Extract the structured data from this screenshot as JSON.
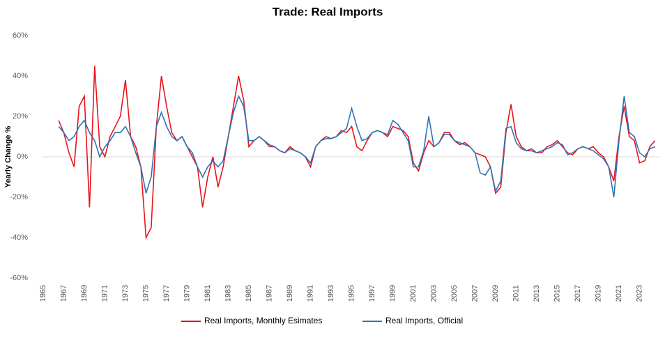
{
  "chart_data": {
    "type": "line",
    "title": "Trade: Real Imports",
    "ylabel": "Yearly Change %",
    "x": [
      1966.5,
      1967,
      1967.5,
      1968,
      1968.5,
      1969,
      1969.5,
      1970,
      1970.5,
      1971,
      1971.5,
      1972,
      1972.5,
      1973,
      1973.5,
      1974,
      1974.5,
      1975,
      1975.5,
      1976,
      1976.5,
      1977,
      1977.5,
      1978,
      1978.5,
      1979,
      1979.5,
      1980,
      1980.5,
      1981,
      1981.5,
      1982,
      1982.5,
      1983,
      1983.5,
      1984,
      1984.5,
      1985,
      1985.5,
      1986,
      1986.5,
      1987,
      1987.5,
      1988,
      1988.5,
      1989,
      1989.5,
      1990,
      1990.5,
      1991,
      1991.5,
      1992,
      1992.5,
      1993,
      1993.5,
      1994,
      1994.5,
      1995,
      1995.5,
      1996,
      1996.5,
      1997,
      1997.5,
      1998,
      1998.5,
      1999,
      1999.5,
      2000,
      2000.5,
      2001,
      2001.5,
      2002,
      2002.5,
      2003,
      2003.5,
      2004,
      2004.5,
      2005,
      2005.5,
      2006,
      2006.5,
      2007,
      2007.5,
      2008,
      2008.5,
      2009,
      2009.5,
      2010,
      2010.5,
      2011,
      2011.5,
      2012,
      2012.5,
      2013,
      2013.5,
      2014,
      2014.5,
      2015,
      2015.5,
      2016,
      2016.5,
      2017,
      2017.5,
      2018,
      2018.5,
      2019,
      2019.5,
      2020,
      2020.5,
      2021,
      2021.5,
      2022,
      2022.5,
      2023,
      2023.5,
      2024,
      2024.5
    ],
    "series": [
      {
        "name": "Real Imports, Monthly Esimates",
        "color": "#e8141b",
        "values": [
          18,
          12,
          2,
          -5,
          25,
          30,
          -25,
          45,
          5,
          0,
          10,
          15,
          20,
          38,
          10,
          5,
          -5,
          -40,
          -35,
          15,
          40,
          25,
          12,
          8,
          10,
          5,
          0,
          -5,
          -25,
          -10,
          0,
          -15,
          -5,
          10,
          25,
          40,
          28,
          5,
          8,
          10,
          8,
          5,
          5,
          3,
          2,
          5,
          3,
          2,
          0,
          -5,
          5,
          8,
          10,
          9,
          10,
          13,
          12,
          15,
          5,
          3,
          8,
          12,
          13,
          12,
          10,
          15,
          14,
          13,
          10,
          -3,
          -7,
          2,
          8,
          5,
          7,
          12,
          12,
          8,
          6,
          7,
          5,
          2,
          1,
          0,
          -5,
          -18,
          -15,
          12,
          26,
          10,
          5,
          3,
          3,
          2,
          2,
          5,
          6,
          8,
          5,
          2,
          1,
          4,
          5,
          4,
          5,
          2,
          0,
          -5,
          -12,
          10,
          25,
          10,
          8,
          -3,
          -2,
          5,
          8
        ]
      },
      {
        "name": "Real Imports, Official",
        "color": "#2e75b6",
        "values": [
          15,
          12,
          8,
          10,
          15,
          18,
          12,
          8,
          0,
          5,
          8,
          12,
          12,
          15,
          10,
          2,
          -5,
          -18,
          -10,
          15,
          22,
          15,
          10,
          8,
          10,
          5,
          2,
          -5,
          -10,
          -5,
          -2,
          -5,
          -2,
          10,
          22,
          30,
          25,
          8,
          8,
          10,
          8,
          6,
          5,
          3,
          2,
          4,
          3,
          2,
          0,
          -3,
          5,
          8,
          9,
          9,
          10,
          12,
          14,
          24,
          15,
          8,
          9,
          12,
          13,
          12,
          11,
          18,
          16,
          12,
          8,
          -5,
          -5,
          3,
          20,
          5,
          7,
          11,
          11,
          8,
          7,
          6,
          5,
          2,
          -8,
          -9,
          -5,
          -17,
          -12,
          14,
          15,
          7,
          4,
          3,
          4,
          2,
          3,
          4,
          5,
          7,
          6,
          1,
          2,
          4,
          5,
          4,
          3,
          1,
          -1,
          -5,
          -20,
          8,
          30,
          12,
          10,
          2,
          0,
          4,
          5
        ]
      }
    ],
    "xlim": [
      1965,
      2025
    ],
    "xticks": [
      1965,
      1967,
      1969,
      1971,
      1973,
      1975,
      1977,
      1979,
      1981,
      1983,
      1985,
      1987,
      1989,
      1991,
      1993,
      1995,
      1997,
      1999,
      2001,
      2003,
      2005,
      2007,
      2009,
      2011,
      2013,
      2015,
      2017,
      2019,
      2021,
      2023
    ],
    "ylim": [
      -60,
      60
    ],
    "yticks": [
      {
        "value": -60,
        "label": "-60%"
      },
      {
        "value": -40,
        "label": "-40%"
      },
      {
        "value": -20,
        "label": "-20%"
      },
      {
        "value": 0,
        "label": "0%"
      },
      {
        "value": 20,
        "label": "20%"
      },
      {
        "value": 40,
        "label": "40%"
      },
      {
        "value": 60,
        "label": "60%"
      }
    ],
    "legend": "bottom"
  }
}
